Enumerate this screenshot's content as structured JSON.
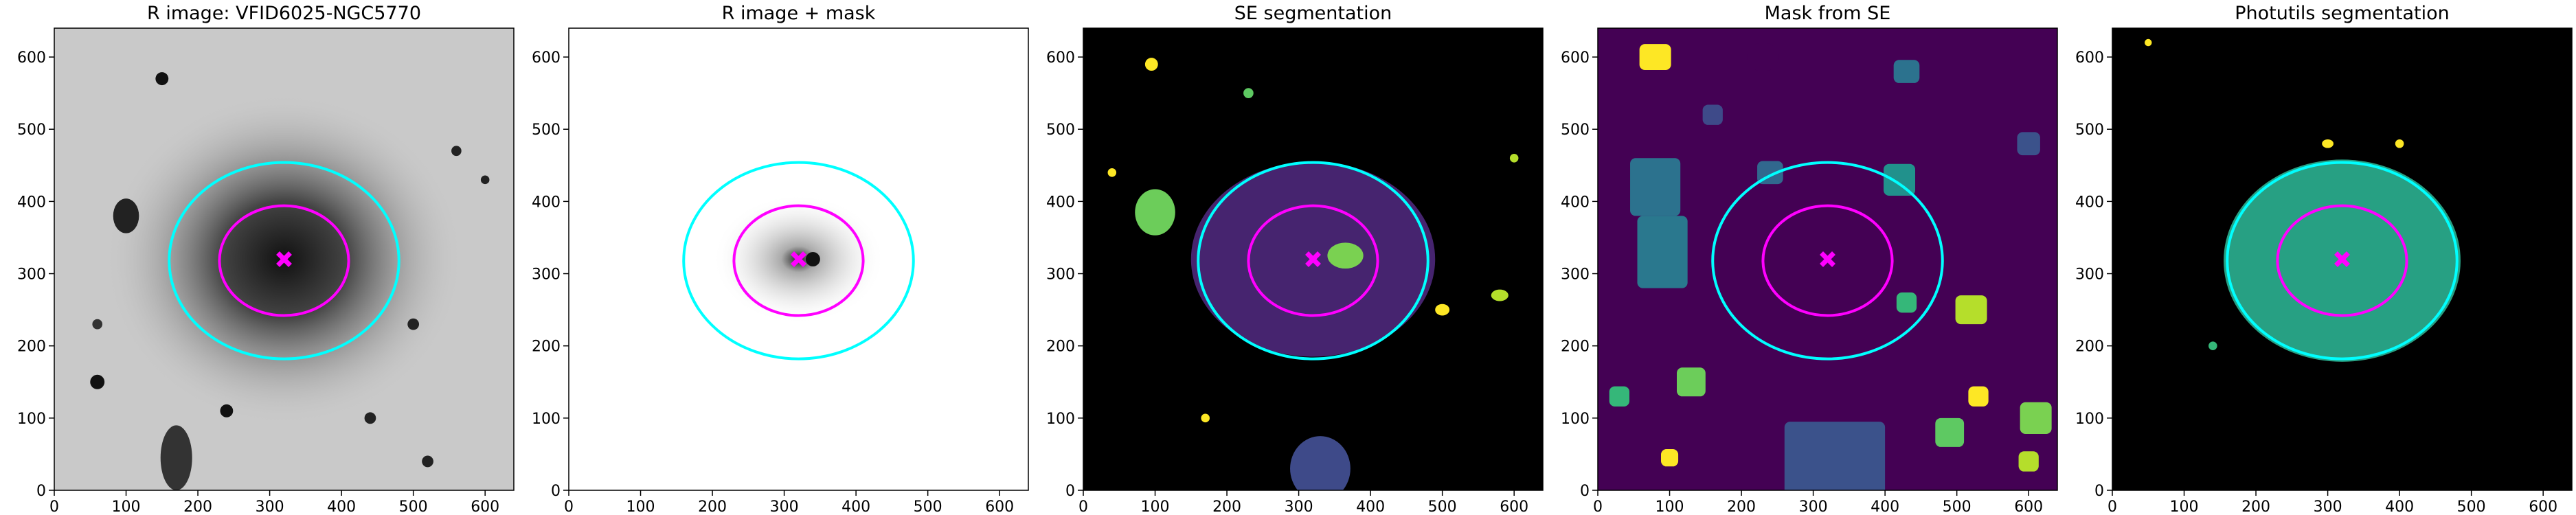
{
  "chart_data": [
    {
      "type": "image",
      "title": "R image: VFID6025-NGC5770",
      "background": "#c9c9c9",
      "xlim": [
        0,
        640
      ],
      "ylim": [
        0,
        640
      ],
      "xticks": [
        0,
        100,
        200,
        300,
        400,
        500,
        600
      ],
      "yticks": [
        0,
        100,
        200,
        300,
        400,
        500,
        600
      ],
      "ellipses": [
        {
          "color": "#00ffff",
          "cx": 320,
          "cy": 318,
          "a": 160,
          "b": 136
        },
        {
          "color": "#ff00ff",
          "cx": 320,
          "cy": 318,
          "a": 90,
          "b": 76
        }
      ],
      "marker": {
        "x": 320,
        "y": 320,
        "color": "#ff00ff"
      }
    },
    {
      "type": "image",
      "title": "R image + mask",
      "background": "#ffffff",
      "xlim": [
        0,
        640
      ],
      "ylim": [
        0,
        640
      ],
      "xticks": [
        0,
        100,
        200,
        300,
        400,
        500,
        600
      ],
      "yticks": [
        0,
        100,
        200,
        300,
        400,
        500,
        600
      ],
      "ellipses": [
        {
          "color": "#00ffff",
          "cx": 320,
          "cy": 318,
          "a": 160,
          "b": 136
        },
        {
          "color": "#ff00ff",
          "cx": 320,
          "cy": 318,
          "a": 90,
          "b": 76
        }
      ],
      "marker": {
        "x": 320,
        "y": 320,
        "color": "#ff00ff"
      }
    },
    {
      "type": "image",
      "title": "SE segmentation",
      "background": "#000000",
      "xlim": [
        0,
        640
      ],
      "ylim": [
        0,
        640
      ],
      "xticks": [
        0,
        100,
        200,
        300,
        400,
        500,
        600
      ],
      "yticks": [
        0,
        100,
        200,
        300,
        400,
        500,
        600
      ],
      "ellipses": [
        {
          "color": "#00ffff",
          "cx": 320,
          "cy": 318,
          "a": 160,
          "b": 136
        },
        {
          "color": "#ff00ff",
          "cx": 320,
          "cy": 318,
          "a": 90,
          "b": 76
        }
      ],
      "marker": {
        "x": 320,
        "y": 320,
        "color": "#ff00ff"
      }
    },
    {
      "type": "image",
      "title": "Mask from SE",
      "background": "#440154",
      "xlim": [
        0,
        640
      ],
      "ylim": [
        0,
        640
      ],
      "xticks": [
        0,
        100,
        200,
        300,
        400,
        500,
        600
      ],
      "yticks": [
        0,
        100,
        200,
        300,
        400,
        500,
        600
      ],
      "ellipses": [
        {
          "color": "#00ffff",
          "cx": 320,
          "cy": 318,
          "a": 160,
          "b": 136
        },
        {
          "color": "#ff00ff",
          "cx": 320,
          "cy": 318,
          "a": 90,
          "b": 76
        }
      ],
      "marker": {
        "x": 320,
        "y": 320,
        "color": "#ff00ff"
      }
    },
    {
      "type": "image",
      "title": "Photutils segmentation",
      "background": "#000000",
      "xlim": [
        0,
        640
      ],
      "ylim": [
        0,
        640
      ],
      "xticks": [
        0,
        100,
        200,
        300,
        400,
        500,
        600
      ],
      "yticks": [
        0,
        100,
        200,
        300,
        400,
        500,
        600
      ],
      "ellipses": [
        {
          "color": "#00ffff",
          "cx": 320,
          "cy": 318,
          "a": 160,
          "b": 136
        },
        {
          "color": "#ff00ff",
          "cx": 320,
          "cy": 318,
          "a": 90,
          "b": 76
        }
      ],
      "marker": {
        "x": 320,
        "y": 320,
        "color": "#ff00ff"
      }
    }
  ]
}
